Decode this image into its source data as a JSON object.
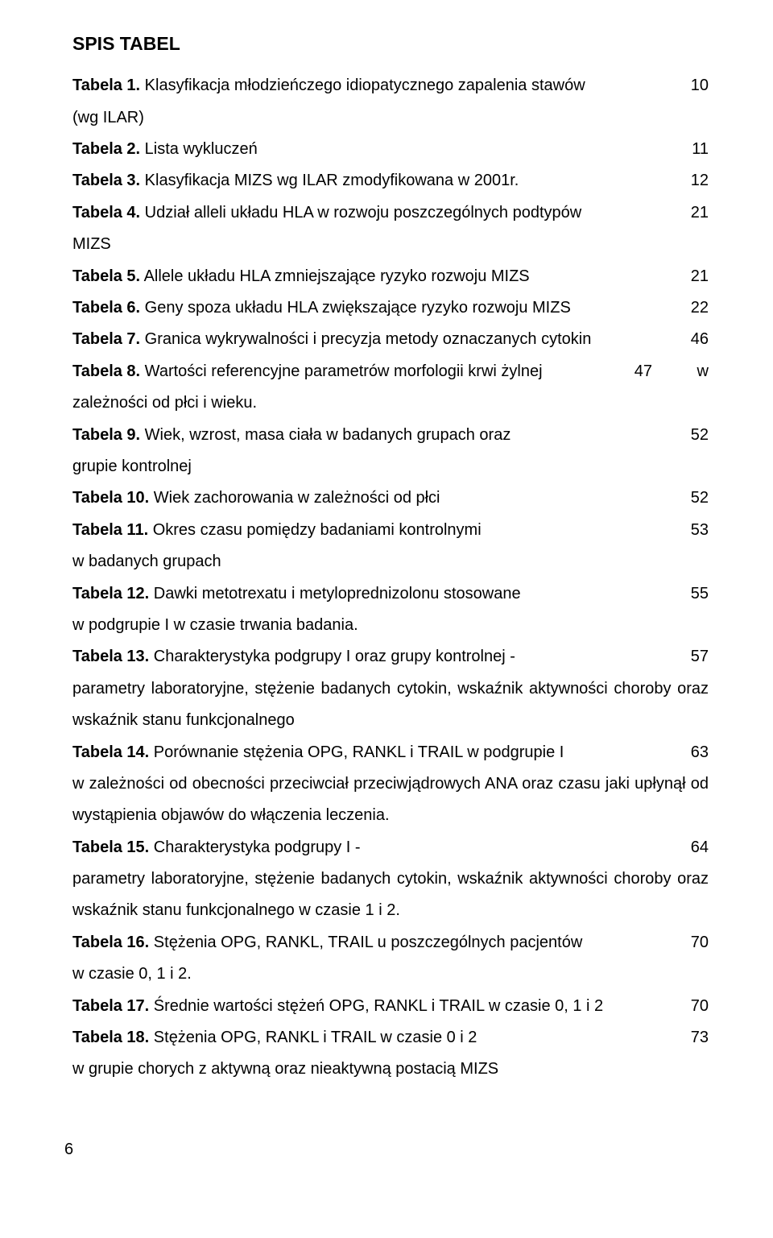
{
  "heading": "SPIS TABEL",
  "entries": [
    {
      "label": "Tabela 1.",
      "text": " Klasyfikacja młodzieńczego idiopatycznego zapalenia stawów",
      "page": "10",
      "cont": "(wg ILAR)"
    },
    {
      "label": "Tabela 2.",
      "text": " Lista wykluczeń",
      "page": "11"
    },
    {
      "label": "Tabela 3.",
      "text": " Klasyfikacja MIZS wg ILAR zmodyfikowana w 2001r.",
      "page": "12"
    },
    {
      "label": "Tabela 4.",
      "text": " Udział alleli układu HLA w rozwoju poszczególnych podtypów",
      "page": "21",
      "cont": "MIZS"
    },
    {
      "label": "Tabela 5.",
      "text": " Allele układu HLA zmniejszające ryzyko rozwoju MIZS",
      "page": "21"
    },
    {
      "label": "Tabela 6.",
      "text": " Geny spoza układu HLA zwiększające ryzyko rozwoju MIZS",
      "page": "22"
    },
    {
      "label": "Tabela 7.",
      "text": " Granica wykrywalności i precyzja metody oznaczanych cytokin",
      "page": "46"
    },
    {
      "label": "Tabela 8.",
      "text": " Wartości referencyjne parametrów morfologii krwi żylnej",
      "page": "47",
      "pageExtra": "w",
      "cont": "zależności od płci i wieku."
    },
    {
      "label": "Tabela 9.",
      "text": " Wiek, wzrost, masa ciała w badanych grupach oraz",
      "page": "52",
      "cont": "grupie kontrolnej"
    },
    {
      "label": "Tabela 10.",
      "text": " Wiek zachorowania w zależności od płci",
      "page": "52"
    },
    {
      "label": "Tabela 11.",
      "text": " Okres czasu pomiędzy badaniami kontrolnymi",
      "page": "53",
      "cont": "w badanych grupach"
    },
    {
      "label": "Tabela 12.",
      "text": " Dawki metotrexatu i metyloprednizolonu stosowane",
      "page": "55",
      "cont": "w podgrupie I w czasie trwania badania."
    },
    {
      "label": "Tabela 13.",
      "text": " Charakterystyka podgrupy I oraz grupy kontrolnej -",
      "page": "57",
      "cont": "parametry laboratoryjne, stężenie badanych cytokin, wskaźnik aktywności choroby oraz wskaźnik stanu funkcjonalnego"
    },
    {
      "label": "Tabela 14.",
      "text": " Porównanie stężenia OPG, RANKL i TRAIL w podgrupie I",
      "page": "63",
      "cont": "w zależności od obecności przeciwciał przeciwjądrowych ANA oraz czasu jaki upłynął od wystąpienia objawów do włączenia leczenia."
    },
    {
      "label": "Tabela 15.",
      "text": " Charakterystyka podgrupy I -",
      "page": "64",
      "cont": "parametry laboratoryjne, stężenie badanych cytokin, wskaźnik aktywności choroby oraz wskaźnik stanu funkcjonalnego w czasie 1 i 2."
    },
    {
      "label": "Tabela 16.",
      "text": " Stężenia OPG, RANKL, TRAIL u poszczególnych pacjentów",
      "page": "70",
      "cont": "w czasie 0, 1 i 2."
    },
    {
      "label": "Tabela 17.",
      "text": " Średnie wartości stężeń OPG, RANKL i TRAIL w czasie 0, 1 i 2",
      "page": "70"
    },
    {
      "label": "Tabela 18.",
      "text": " Stężenia OPG, RANKL i TRAIL w czasie 0 i 2",
      "page": "73",
      "cont": "w grupie chorych z aktywną oraz nieaktywną postacią MIZS"
    }
  ],
  "footerPage": "6"
}
